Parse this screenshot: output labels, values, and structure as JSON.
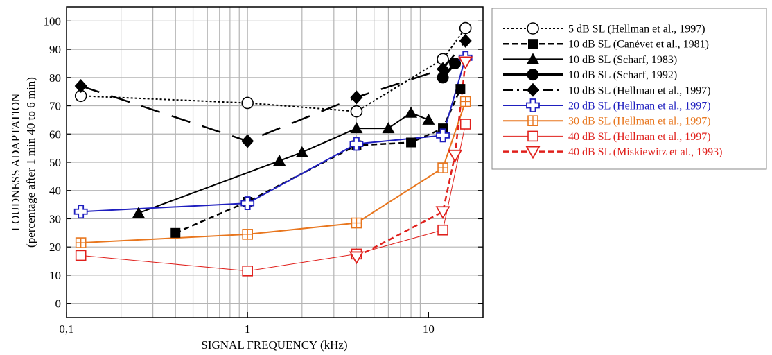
{
  "chart_data": {
    "type": "line",
    "xlabel": "SIGNAL FREQUENCY (kHz)",
    "ylabel_line1": "LOUDNESS ADAPTATION",
    "ylabel_line2": "(percentage after 1 min 40 to 6 min)",
    "x_scale": "log",
    "xlim": [
      0.1,
      20
    ],
    "ylim": [
      -5,
      105
    ],
    "x_ticks": [
      {
        "value": 0.1,
        "label": "0,1"
      },
      {
        "value": 1,
        "label": "1"
      },
      {
        "value": 10,
        "label": "10"
      }
    ],
    "y_ticks": [
      0,
      10,
      20,
      30,
      40,
      50,
      60,
      70,
      80,
      90,
      100
    ],
    "grid": true,
    "legend_position": "right",
    "series": [
      {
        "name": "5 dB SL (Hellman et al., 1997)",
        "color": "#000000",
        "marker": "circle-open",
        "line": "dotted",
        "legend_sample": "dotted",
        "points": [
          [
            0.12,
            73.5
          ],
          [
            1,
            71
          ],
          [
            4,
            68
          ],
          [
            12,
            86.5
          ],
          [
            16,
            97.5
          ]
        ]
      },
      {
        "name": "10 dB SL (Canévet et al., 1981)",
        "color": "#000000",
        "marker": "square-filled",
        "line": "dashed",
        "legend_sample": "dashed",
        "points": [
          [
            0.4,
            25
          ],
          [
            1,
            36
          ],
          [
            4,
            56
          ],
          [
            8,
            57
          ],
          [
            12,
            62
          ],
          [
            15,
            76
          ]
        ]
      },
      {
        "name": "10 dB SL (Scharf, 1983)",
        "color": "#000000",
        "marker": "triangle-filled",
        "line": "solid",
        "legend_sample": "solid",
        "points": [
          [
            0.25,
            32
          ],
          [
            1.5,
            50.5
          ],
          [
            2,
            53.5
          ],
          [
            4,
            62
          ],
          [
            6,
            62
          ],
          [
            8,
            67.5
          ],
          [
            10,
            65
          ]
        ]
      },
      {
        "name": "10 dB SL (Scharf, 1992)",
        "color": "#000000",
        "marker": "circle-filled",
        "line": "thick",
        "legend_sample": "thick",
        "points": [
          [
            12,
            80
          ],
          [
            14,
            85
          ]
        ]
      },
      {
        "name": "10 dB SL  (Hellman et al., 1997)",
        "color": "#000000",
        "marker": "diamond-filled",
        "line": "longdash",
        "legend_sample": "dashdot",
        "points": [
          [
            0.12,
            77
          ],
          [
            1,
            57.5
          ],
          [
            4,
            73
          ],
          [
            12,
            83
          ],
          [
            16,
            93
          ]
        ]
      },
      {
        "name": "20 dB SL  (Hellman et al., 1997)",
        "color": "#1f1fbf",
        "marker": "plus-open",
        "line": "solid",
        "legend_sample": "solid",
        "points": [
          [
            0.12,
            32.5
          ],
          [
            1,
            35.5
          ],
          [
            4,
            56.5
          ],
          [
            12,
            59.5
          ],
          [
            16,
            87
          ]
        ]
      },
      {
        "name": "30 dB SL  (Hellman et al., 1997)",
        "color": "#e8761e",
        "marker": "square-plus",
        "line": "solid",
        "legend_sample": "solid",
        "points": [
          [
            0.12,
            21.5
          ],
          [
            1,
            24.5
          ],
          [
            4,
            28.5
          ],
          [
            12,
            48
          ],
          [
            16,
            71.5
          ]
        ]
      },
      {
        "name": "40 dB SL  (Hellman et al., 1997)",
        "color": "#e0201c",
        "marker": "square-open",
        "line": "thin",
        "legend_sample": "thin",
        "points": [
          [
            0.12,
            17
          ],
          [
            1,
            11.5
          ],
          [
            4,
            17.5
          ],
          [
            12,
            26
          ],
          [
            16,
            63.5
          ]
        ]
      },
      {
        "name": "40 dB SL (Miskiewitz et al., 1993)",
        "color": "#e0201c",
        "marker": "triangle-down-open",
        "line": "dashed",
        "legend_sample": "dashed",
        "points": [
          [
            4,
            16.5
          ],
          [
            12,
            32.5
          ],
          [
            14,
            52.5
          ],
          [
            16,
            85.5
          ]
        ]
      }
    ]
  }
}
